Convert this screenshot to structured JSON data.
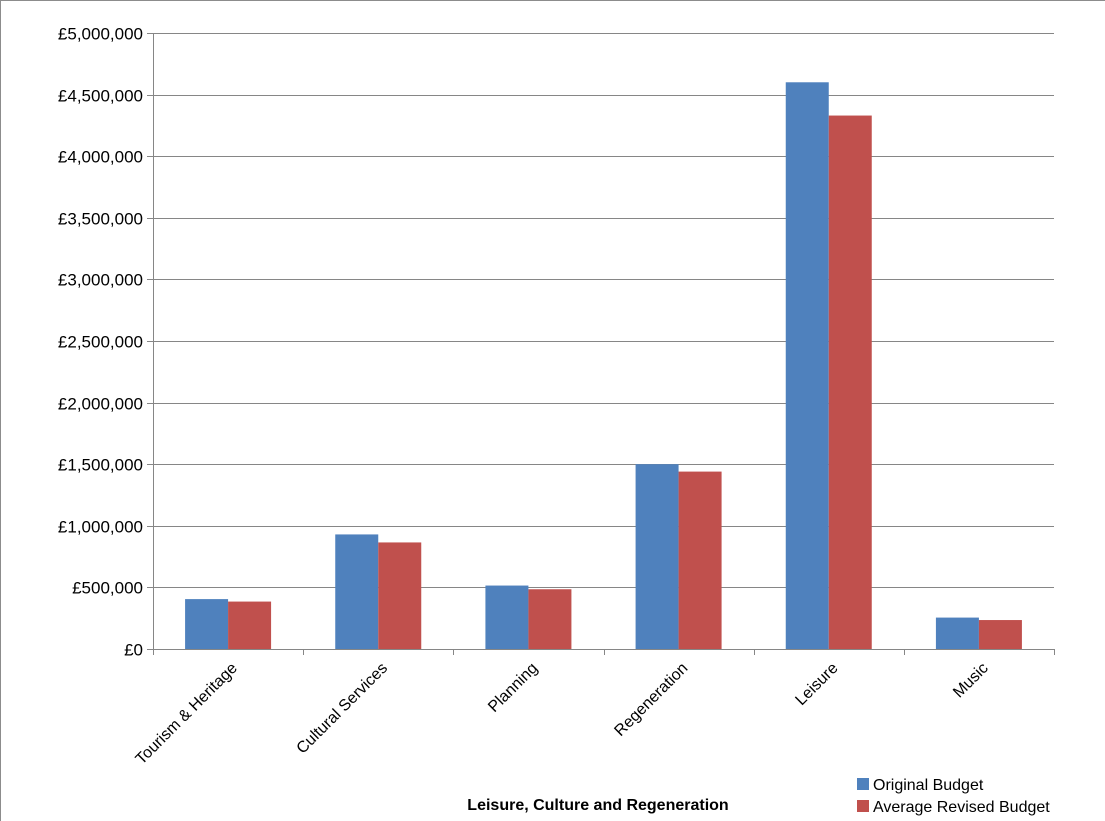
{
  "chart_data": {
    "type": "bar",
    "categories": [
      "Tourism & Heritage",
      "Cultural Services",
      "Planning",
      "Regeneration",
      "Leisure",
      "Music"
    ],
    "series": [
      {
        "name": "Original Budget",
        "color": "#4f81bd",
        "values": [
          405000,
          930000,
          515000,
          1500000,
          4600000,
          255000
        ]
      },
      {
        "name": "Average Revised Budget",
        "color": "#c0504d",
        "values": [
          385000,
          865000,
          485000,
          1440000,
          4330000,
          235000
        ]
      }
    ],
    "title": "",
    "xlabel": "Leisure, Culture and Regeneration",
    "ylabel": "",
    "ylim": [
      0,
      5000000
    ],
    "y_ticks": [
      0,
      500000,
      1000000,
      1500000,
      2000000,
      2500000,
      3000000,
      3500000,
      4000000,
      4500000,
      5000000
    ],
    "y_tick_labels": [
      "£0",
      "£500,000",
      "£1,000,000",
      "£1,500,000",
      "£2,000,000",
      "£2,500,000",
      "£3,000,000",
      "£3,500,000",
      "£4,000,000",
      "£4,500,000",
      "£5,000,000"
    ],
    "grid": true,
    "legend_position": "bottom-right",
    "gridline_color": "#868686",
    "axis_color": "#868686"
  }
}
